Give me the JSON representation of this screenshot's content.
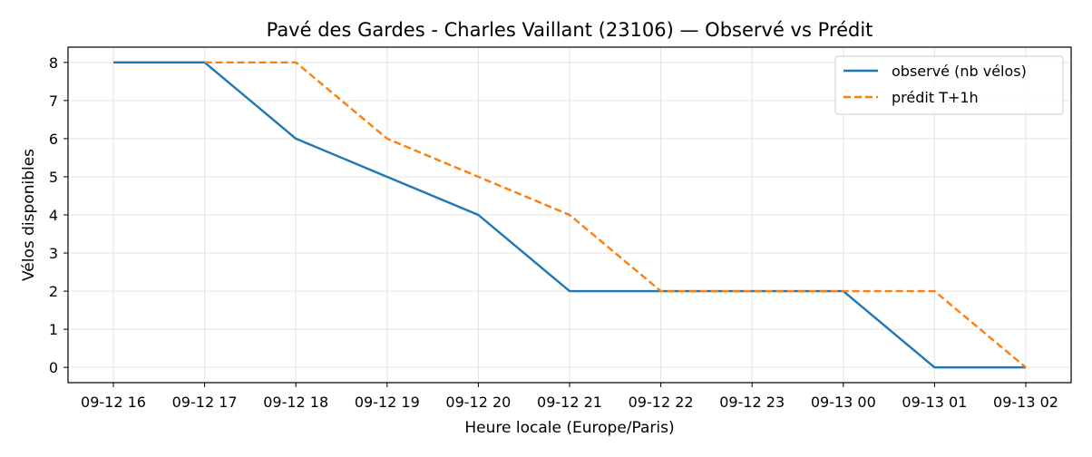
{
  "chart_data": {
    "type": "line",
    "title": "Pavé des Gardes - Charles Vaillant (23106) — Observé vs Prédit",
    "xlabel": "Heure locale (Europe/Paris)",
    "ylabel": "Vélos disponibles",
    "x": [
      "09-12 16",
      "09-12 17",
      "09-12 18",
      "09-12 19",
      "09-12 20",
      "09-12 21",
      "09-12 22",
      "09-12 23",
      "09-13 00",
      "09-13 01",
      "09-13 02"
    ],
    "ylim": [
      -0.4,
      8.4
    ],
    "yticks": [
      "0",
      "1",
      "2",
      "3",
      "4",
      "5",
      "6",
      "7",
      "8"
    ],
    "grid": true,
    "legend_position": "top-right",
    "series": [
      {
        "name": "observé (nb vélos)",
        "color": "#1f77b4",
        "style": "solid",
        "values": [
          8,
          8,
          6,
          5,
          4,
          2,
          2,
          2,
          2,
          0,
          0
        ]
      },
      {
        "name": "prédit T+1h",
        "color": "#ff7f0e",
        "style": "dashed",
        "values": [
          null,
          8,
          8,
          6,
          5,
          4,
          2,
          2,
          2,
          2,
          0
        ]
      }
    ]
  }
}
